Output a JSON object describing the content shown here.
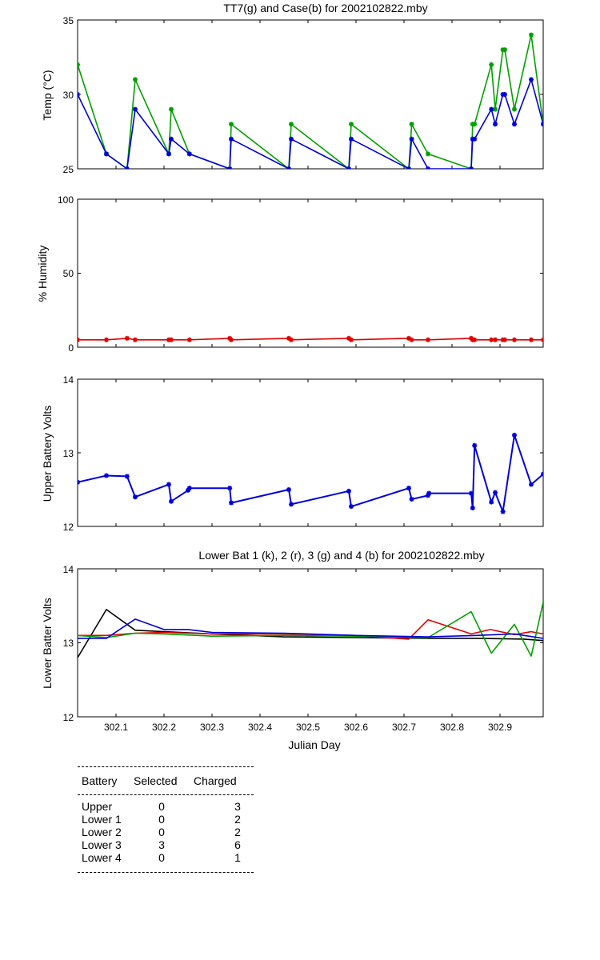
{
  "chart_data": [
    {
      "type": "line",
      "title": "TT7(g) and Case(b) for 2002102822.mby",
      "xlabel": "",
      "ylabel": "Temp  (°C)",
      "xlim": [
        302.02,
        302.99
      ],
      "ylim": [
        25,
        35
      ],
      "yticks": [
        "25",
        "30",
        "35"
      ],
      "series": [
        {
          "name": "TT7 (g)",
          "color": "#00a000",
          "x": [
            302.02,
            302.08,
            302.123,
            302.14,
            302.21,
            302.215,
            302.253,
            302.337,
            302.34,
            302.46,
            302.465,
            302.585,
            302.59,
            302.71,
            302.716,
            302.75,
            302.84,
            302.843,
            302.847,
            302.882,
            302.89,
            302.906,
            302.91,
            302.93,
            302.965,
            302.99
          ],
          "y": [
            32,
            26,
            25,
            31,
            26,
            29,
            26,
            25,
            28,
            25,
            28,
            25,
            28,
            25,
            28,
            26,
            25,
            28,
            28,
            32,
            29,
            33,
            33,
            29,
            34,
            28
          ]
        },
        {
          "name": "Case (b)",
          "color": "#0000dd",
          "x": [
            302.02,
            302.08,
            302.123,
            302.14,
            302.21,
            302.215,
            302.253,
            302.337,
            302.34,
            302.46,
            302.465,
            302.585,
            302.59,
            302.71,
            302.716,
            302.75,
            302.84,
            302.843,
            302.847,
            302.882,
            302.89,
            302.906,
            302.91,
            302.93,
            302.965,
            302.99
          ],
          "y": [
            30,
            26,
            25,
            29,
            26,
            27,
            26,
            25,
            27,
            25,
            27,
            25,
            27,
            25,
            27,
            25,
            25,
            27,
            27,
            29,
            28,
            30,
            30,
            28,
            31,
            28
          ]
        }
      ]
    },
    {
      "type": "line",
      "title": "",
      "xlabel": "",
      "ylabel": "% Humidity",
      "xlim": [
        302.02,
        302.99
      ],
      "ylim": [
        0,
        100
      ],
      "yticks": [
        "0",
        "50",
        "100"
      ],
      "series": [
        {
          "name": "Humidity",
          "color": "#e00000",
          "x": [
            302.02,
            302.08,
            302.123,
            302.14,
            302.21,
            302.215,
            302.253,
            302.337,
            302.34,
            302.46,
            302.465,
            302.585,
            302.59,
            302.71,
            302.716,
            302.75,
            302.84,
            302.843,
            302.847,
            302.882,
            302.89,
            302.906,
            302.91,
            302.93,
            302.965,
            302.99
          ],
          "y": [
            5,
            5,
            6,
            5,
            5,
            5,
            5,
            6,
            5,
            6,
            5,
            6,
            5,
            6,
            5,
            5,
            6,
            5,
            5,
            5,
            5,
            5,
            5,
            5,
            5,
            5
          ]
        }
      ]
    },
    {
      "type": "line",
      "title": "",
      "xlabel": "",
      "ylabel": "Upper Battery Volts",
      "xlim": [
        302.02,
        302.99
      ],
      "ylim": [
        12,
        14
      ],
      "yticks": [
        "12",
        "13",
        "14"
      ],
      "series": [
        {
          "name": "Upper battery",
          "color": "#0000dd",
          "x": [
            302.02,
            302.08,
            302.123,
            302.14,
            302.21,
            302.215,
            302.25,
            302.253,
            302.337,
            302.34,
            302.46,
            302.465,
            302.585,
            302.59,
            302.71,
            302.716,
            302.75,
            302.752,
            302.84,
            302.843,
            302.847,
            302.882,
            302.89,
            302.906,
            302.93,
            302.965,
            302.99
          ],
          "y": [
            12.6,
            12.69,
            12.68,
            12.4,
            12.57,
            12.34,
            12.49,
            12.52,
            12.52,
            12.32,
            12.5,
            12.3,
            12.48,
            12.27,
            12.52,
            12.37,
            12.42,
            12.45,
            12.45,
            12.25,
            13.1,
            12.33,
            12.46,
            12.2,
            13.24,
            12.57,
            12.71
          ]
        }
      ]
    },
    {
      "type": "line",
      "title": "Lower Bat 1 (k), 2 (r), 3 (g) and 4 (b) for 2002102822.mby",
      "xlabel": "Julian Day",
      "ylabel": "Lower Batter Volts",
      "xlim": [
        302.02,
        302.99
      ],
      "ylim": [
        12,
        14
      ],
      "yticks": [
        "12",
        "13",
        "14"
      ],
      "xticks": [
        "302.1",
        "302.2",
        "302.3",
        "302.4",
        "302.5",
        "302.6",
        "302.7",
        "302.8",
        "302.9"
      ],
      "series": [
        {
          "name": "Lower 1 (k)",
          "color": "#000000",
          "x": [
            302.02,
            302.08,
            302.14,
            302.2,
            302.3,
            302.45,
            302.6,
            302.75,
            302.85,
            302.95,
            302.99
          ],
          "y": [
            12.8,
            13.45,
            13.17,
            13.15,
            13.12,
            13.08,
            13.07,
            13.06,
            13.06,
            13.05,
            13.03
          ]
        },
        {
          "name": "Lower 2 (r)",
          "color": "#e00000",
          "x": [
            302.02,
            302.08,
            302.14,
            302.2,
            302.3,
            302.45,
            302.6,
            302.71,
            302.75,
            302.84,
            302.88,
            302.93,
            302.965,
            302.99
          ],
          "y": [
            13.1,
            13.1,
            13.13,
            13.14,
            13.12,
            13.12,
            13.1,
            13.05,
            13.31,
            13.12,
            13.18,
            13.11,
            13.15,
            13.12
          ]
        },
        {
          "name": "Lower 3 (g)",
          "color": "#00a000",
          "x": [
            302.02,
            302.08,
            302.14,
            302.2,
            302.3,
            302.45,
            302.6,
            302.75,
            302.84,
            302.882,
            302.93,
            302.965,
            302.99
          ],
          "y": [
            13.1,
            13.07,
            13.13,
            13.12,
            13.09,
            13.1,
            13.09,
            13.07,
            13.42,
            12.86,
            13.25,
            12.82,
            13.55
          ]
        },
        {
          "name": "Lower 4 (b)",
          "color": "#0000dd",
          "x": [
            302.02,
            302.08,
            302.14,
            302.2,
            302.25,
            302.3,
            302.45,
            302.6,
            302.75,
            302.85,
            302.93,
            302.99
          ],
          "y": [
            13.06,
            13.06,
            13.32,
            13.18,
            13.18,
            13.14,
            13.13,
            13.1,
            13.08,
            13.1,
            13.12,
            13.06
          ]
        }
      ]
    }
  ],
  "battery_table": {
    "headers": [
      "Battery",
      "Selected",
      "Charged"
    ],
    "rows": [
      {
        "battery": "Upper",
        "selected": "0",
        "charged": "3"
      },
      {
        "battery": "Lower 1",
        "selected": "0",
        "charged": "2"
      },
      {
        "battery": "Lower 2",
        "selected": "0",
        "charged": "2"
      },
      {
        "battery": "Lower 3",
        "selected": "3",
        "charged": "6"
      },
      {
        "battery": "Lower 4",
        "selected": "0",
        "charged": "1"
      }
    ]
  }
}
